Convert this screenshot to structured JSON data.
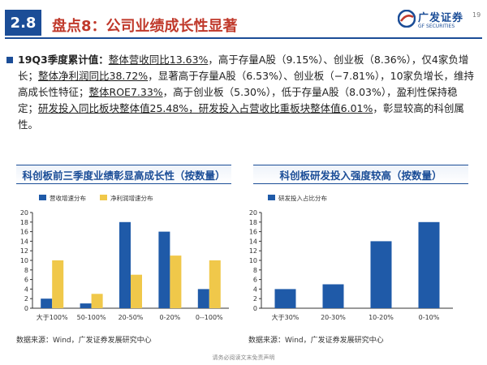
{
  "header": {
    "section_number": "2.8",
    "title": "盘点8：公司业绩成长性显著",
    "logo_cn": "广发证券",
    "logo_en": "GF SECURITIES",
    "page_number": "19"
  },
  "summary": {
    "s1": "19Q3季度累计值：",
    "s2": "整体营收同比13.63%",
    "s3": "，高于存量A股（9.15%）、创业板（8.36%），仅4家负增长；",
    "s4": "整体净利润同比38.72%",
    "s5": "，显著高于存量A股（6.53%）、创业板（−7.81%），10家负增长，维持高成长性特征；",
    "s6": "整体ROE7.33%",
    "s7": "，高于创业板（5.30%），低于存量A股（8.03%），盈利性保持稳定；",
    "s8": "研发投入同比板块整体值25.48%，研发投入占营收比重板块整体值6.01%",
    "s9": "，彰显较高的科创属性。"
  },
  "left_panel": {
    "title": "科创板前三季度业绩彰显高成长性（按数量）",
    "source": "数据来源：Wind，广发证券发展研究中心"
  },
  "right_panel": {
    "title": "科创板研发投入强度较高（按数量）",
    "source": "数据来源：Wind，广发证券发展研究中心"
  },
  "footer": {
    "text": "请务必阅读文末免责声明"
  },
  "colors": {
    "brand_blue": "#1b4d97",
    "bar_blue": "#1f5aa8",
    "bar_gold": "#f0c84a",
    "title_red": "#c0392b"
  },
  "icons": {
    "logo_mark": "gf-logo-icon",
    "bullet": "square-bullet-icon"
  },
  "chart_data": [
    {
      "type": "bar",
      "categories": [
        "大于100%",
        "50-100%",
        "20-50%",
        "0-20%",
        "0--100%"
      ],
      "series": [
        {
          "name": "营收增速分布",
          "values": [
            2,
            1,
            18,
            16,
            4
          ],
          "color": "#1f5aa8"
        },
        {
          "name": "净利润增速分布",
          "values": [
            10,
            3,
            7,
            11,
            10
          ],
          "color": "#f0c84a"
        }
      ],
      "yticks": [
        "0",
        "2",
        "4",
        "6",
        "8",
        "10",
        "12",
        "14",
        "16",
        "18",
        "20"
      ],
      "ylim": [
        0,
        20
      ],
      "legend": "top-left",
      "grid": false
    },
    {
      "type": "bar",
      "categories": [
        "大于30%",
        "20-30%",
        "10-20%",
        "0-10%"
      ],
      "series": [
        {
          "name": "研发投入占比分布",
          "values": [
            4,
            5,
            14,
            18
          ],
          "color": "#1f5aa8"
        }
      ],
      "yticks": [
        "0",
        "2",
        "4",
        "6",
        "8",
        "10",
        "12",
        "14",
        "16",
        "18",
        "20"
      ],
      "ylim": [
        0,
        20
      ],
      "legend": "top-left",
      "grid": false
    }
  ]
}
